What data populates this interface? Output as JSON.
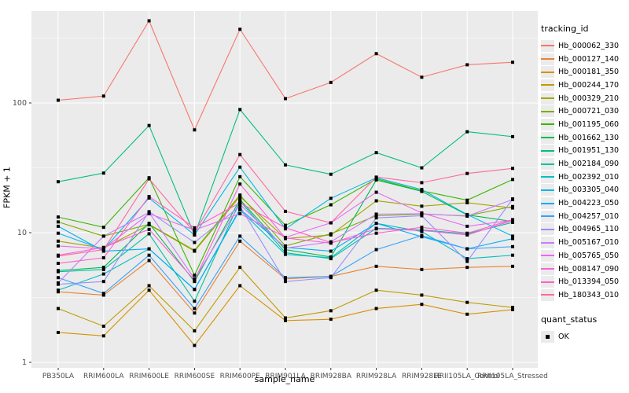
{
  "figure": {
    "background": "#FFFFFF",
    "panel_background": "#EBEBEB",
    "grid_color": "#FFFFFF",
    "axis_text_color": "#4D4D4D",
    "tick_color": "#333333",
    "point_color": "#000000"
  },
  "axes": {
    "y_title": "FPKM + 1",
    "x_title": "sample_name",
    "y_tick_labels": [
      "100",
      "10",
      "1"
    ]
  },
  "legend": {
    "tracking_title": "tracking_id",
    "quant_title": "quant_status",
    "quant_items": [
      "OK"
    ]
  },
  "chart_data": {
    "type": "line",
    "title": "",
    "xlabel": "sample_name",
    "ylabel": "FPKM + 1",
    "y_scale": "log10",
    "y_ticks": [
      1,
      10,
      100
    ],
    "ylim": [
      1,
      450
    ],
    "grid": true,
    "legend_position": "right",
    "point_shape": "filled-black-square",
    "quant_status": "OK",
    "x_categories": [
      "PB350LA",
      "RRIM600LA",
      "RRIM600LE",
      "RRIM600SE",
      "RRIM600PE",
      "RRIM901LA",
      "RRIM928BA",
      "RRIM928LA",
      "RRIM928LE",
      "RRII105LA_Control",
      "RRII105LA_Stressed"
    ],
    "series": [
      {
        "name": "Hb_000062_330",
        "color": "#F8766D",
        "values": [
          105,
          113,
          430,
          62,
          370,
          108,
          144,
          240,
          158,
          197,
          206
        ]
      },
      {
        "name": "Hb_000127_140",
        "color": "#EA8331",
        "values": [
          3.5,
          3.3,
          6.1,
          2.4,
          8.6,
          4.4,
          4.6,
          5.5,
          5.2,
          5.4,
          5.5
        ]
      },
      {
        "name": "Hb_000181_350",
        "color": "#D89000",
        "values": [
          1.7,
          1.6,
          3.6,
          1.35,
          3.9,
          2.1,
          2.15,
          2.6,
          2.8,
          2.35,
          2.55
        ]
      },
      {
        "name": "Hb_000244_170",
        "color": "#C09B00",
        "values": [
          2.6,
          1.9,
          3.9,
          1.75,
          5.4,
          2.2,
          2.5,
          3.6,
          3.3,
          2.9,
          2.65
        ]
      },
      {
        "name": "Hb_000329_210",
        "color": "#A3A500",
        "values": [
          8.6,
          7.6,
          11.5,
          7.2,
          19,
          9.0,
          9.6,
          17.6,
          16,
          17,
          15.5
        ]
      },
      {
        "name": "Hb_000721_030",
        "color": "#7CAE00",
        "values": [
          12.1,
          9.4,
          11.6,
          7.3,
          19.5,
          7.9,
          9.8,
          13.5,
          13.9,
          13.5,
          15.9
        ]
      },
      {
        "name": "Hb_001195_060",
        "color": "#39B600",
        "values": [
          13.2,
          11.0,
          26.5,
          4.7,
          27,
          11.4,
          16.4,
          26,
          21,
          17.8,
          25.7
        ]
      },
      {
        "name": "Hb_001662_130",
        "color": "#00BB4E",
        "values": [
          5.1,
          5.4,
          11.8,
          4.2,
          18,
          7.4,
          6.5,
          25.5,
          20.8,
          13.7,
          12.2
        ]
      },
      {
        "name": "Hb_001951_130",
        "color": "#00BF7D",
        "values": [
          24.7,
          28.8,
          67,
          9.6,
          89,
          33.3,
          28.2,
          41.4,
          31.6,
          60,
          55
        ]
      },
      {
        "name": "Hb_002184_090",
        "color": "#00C1A3",
        "values": [
          5.0,
          5.2,
          9.8,
          2.96,
          17.5,
          7.0,
          6.3,
          10.8,
          10.5,
          9.8,
          12.0
        ]
      },
      {
        "name": "Hb_002392_010",
        "color": "#00BFC4",
        "values": [
          3.6,
          4.8,
          7.5,
          3.65,
          15,
          6.8,
          6.4,
          11.8,
          10.2,
          6.3,
          6.7
        ]
      },
      {
        "name": "Hb_003305_040",
        "color": "#00B8E7",
        "values": [
          9.9,
          7.4,
          18.5,
          9.6,
          32,
          10.7,
          18.4,
          26.5,
          21.5,
          13.8,
          9.4
        ]
      },
      {
        "name": "Hb_004223_050",
        "color": "#00ACFC",
        "values": [
          11.2,
          7.2,
          7.5,
          3.65,
          15.2,
          7.7,
          7.2,
          11.8,
          9.3,
          7.5,
          9.0
        ]
      },
      {
        "name": "Hb_004257_010",
        "color": "#35A2FF",
        "values": [
          4.5,
          3.4,
          6.7,
          2.6,
          9.4,
          4.5,
          4.6,
          7.4,
          9.5,
          7.5,
          7.8
        ]
      },
      {
        "name": "Hb_004965_110",
        "color": "#9590FF",
        "values": [
          4.0,
          4.2,
          14.5,
          8.4,
          16,
          4.2,
          4.5,
          13.0,
          13.5,
          6.0,
          18.2
        ]
      },
      {
        "name": "Hb_005167_010",
        "color": "#C77CFF",
        "values": [
          4.1,
          9.4,
          14.3,
          4.4,
          16.5,
          7.6,
          8.5,
          13.9,
          14.0,
          13.4,
          18.0
        ]
      },
      {
        "name": "Hb_005765_050",
        "color": "#E76BF3",
        "values": [
          7.9,
          7.5,
          14.0,
          10.5,
          14,
          9.2,
          11.9,
          20.5,
          14.2,
          11.2,
          12.5
        ]
      },
      {
        "name": "Hb_008147_090",
        "color": "#FA62DB",
        "values": [
          6.7,
          7.7,
          10.6,
          4.3,
          23.7,
          9.1,
          8.3,
          10.7,
          10.4,
          9.6,
          12.4
        ]
      },
      {
        "name": "Hb_013394_050",
        "color": "#FF61CC",
        "values": [
          5.8,
          6.4,
          19.0,
          10.9,
          17,
          10.9,
          8.4,
          9.9,
          11.0,
          9.9,
          12.6
        ]
      },
      {
        "name": "Hb_180343_010",
        "color": "#FF67A4",
        "values": [
          6.6,
          7.4,
          26.0,
          10.0,
          40,
          14.6,
          11.9,
          26.8,
          24.3,
          28.6,
          31.3
        ]
      }
    ]
  }
}
